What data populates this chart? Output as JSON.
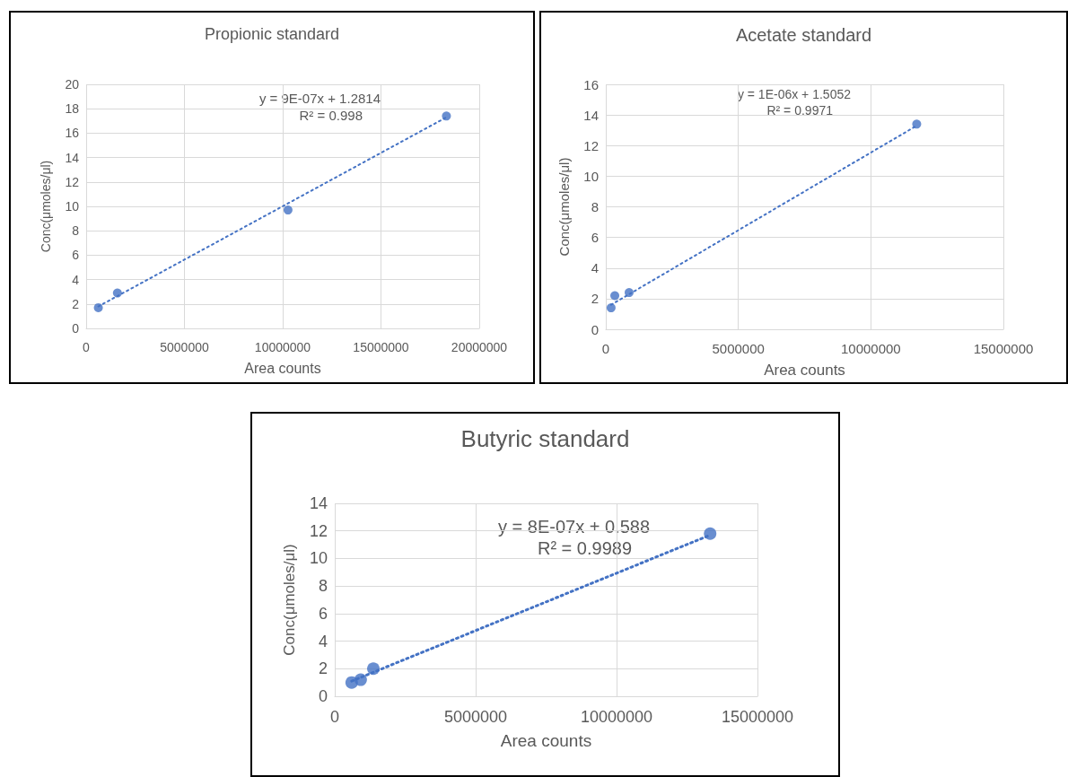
{
  "chart_data": [
    {
      "type": "scatter",
      "title": "Propionic standard",
      "xlabel": "Area counts",
      "ylabel": "Conc(μmoles/μl)",
      "xlim": [
        0,
        20000000
      ],
      "xticks": [
        0,
        5000000,
        10000000,
        15000000,
        20000000
      ],
      "ylim": [
        0,
        20
      ],
      "yticks": [
        0,
        2,
        4,
        6,
        8,
        10,
        12,
        14,
        16,
        18,
        20
      ],
      "grid": true,
      "marker": "circle",
      "annotations": [
        "y = 9E-07x + 1.2814",
        "R² = 0.998"
      ],
      "series": [
        {
          "color": "#4472c4",
          "x": [
            620000,
            1590000,
            10270000,
            18330000
          ],
          "values": [
            1.7,
            2.9,
            9.7,
            17.4
          ]
        },
        {
          "type": "line",
          "color": "#4472c4",
          "line_style": "dotted",
          "marker": "none",
          "x": [
            620000,
            18330000
          ],
          "values": [
            1.8,
            17.3
          ]
        }
      ]
    },
    {
      "type": "scatter",
      "title": "Acetate standard",
      "xlabel": "Area counts",
      "ylabel": "Conc(μmoles/μl)",
      "xlim": [
        0,
        15000000
      ],
      "xticks": [
        0,
        5000000,
        10000000,
        15000000
      ],
      "ylim": [
        0,
        16
      ],
      "yticks": [
        0,
        2,
        4,
        6,
        8,
        10,
        12,
        14,
        16
      ],
      "grid": true,
      "marker": "circle",
      "annotations": [
        "y = 1E-06x + 1.5052",
        "R² = 0.9971"
      ],
      "series": [
        {
          "color": "#4472c4",
          "x": [
            200000,
            340000,
            880000,
            11730000
          ],
          "values": [
            1.4,
            2.2,
            2.4,
            13.4
          ]
        },
        {
          "type": "line",
          "color": "#4472c4",
          "line_style": "dotted",
          "marker": "none",
          "x": [
            200000,
            11730000
          ],
          "values": [
            1.6,
            13.3
          ]
        }
      ]
    },
    {
      "type": "scatter",
      "title": "Butyric standard",
      "xlabel": "Area counts",
      "ylabel": "Conc(μmoles/μl)",
      "xlim": [
        0,
        15000000
      ],
      "xticks": [
        0,
        5000000,
        10000000,
        15000000
      ],
      "ylim": [
        0,
        14
      ],
      "yticks": [
        0,
        2,
        4,
        6,
        8,
        10,
        12,
        14
      ],
      "grid": true,
      "marker": "circle",
      "annotations": [
        "y = 8E-07x + 0.588",
        "R² = 0.9989"
      ],
      "series": [
        {
          "color": "#4472c4",
          "x": [
            600000,
            920000,
            1370000,
            13320000
          ],
          "values": [
            1.0,
            1.2,
            2.0,
            11.8
          ]
        },
        {
          "type": "line",
          "color": "#4472c4",
          "line_style": "dotted",
          "marker": "none",
          "x": [
            600000,
            13320000
          ],
          "values": [
            1.1,
            11.7
          ]
        }
      ]
    }
  ]
}
